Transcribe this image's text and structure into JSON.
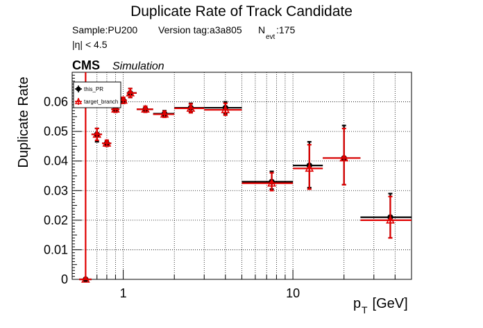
{
  "chart_data": {
    "type": "scatter",
    "title": "Duplicate Rate of Track Candidate",
    "info": {
      "sample": "Sample:PU200",
      "version": "Version tag:a3a805",
      "nevt_prefix": "N",
      "nevt_sub": "evt",
      "nevt_value": ":175",
      "eta_cut": "|η| < 4.5"
    },
    "cms_label": "CMS",
    "cms_extra": "Simulation",
    "xlabel_main": "p",
    "xlabel_sub": "T",
    "xlabel_unit": " [GeV]",
    "ylabel": "Duplicate Rate",
    "x_scale": "log",
    "xlim": [
      0.5,
      50
    ],
    "ylim": [
      0,
      0.07
    ],
    "grid": true,
    "legend_position": "top-left",
    "yticks": [
      0,
      0.01,
      0.02,
      0.03,
      0.04,
      0.05,
      0.06
    ],
    "ytick_labels": [
      "0",
      "0.01",
      "0.02",
      "0.03",
      "0.04",
      "0.05",
      "0.06"
    ],
    "xticks": [
      1,
      10
    ],
    "xtick_labels": [
      "1",
      "10"
    ],
    "series": [
      {
        "name": "this_PR",
        "color": "#000000",
        "marker": "filled-circle",
        "points": [
          {
            "x": 0.6,
            "xlo": 0.55,
            "xhi": 0.65,
            "y": 0.0,
            "ylo": 0.0,
            "yhi": 0.0
          },
          {
            "x": 0.7,
            "xlo": 0.65,
            "xhi": 0.75,
            "y": 0.049,
            "ylo": 0.0465,
            "yhi": 0.051
          },
          {
            "x": 0.8,
            "xlo": 0.75,
            "xhi": 0.85,
            "y": 0.046,
            "ylo": 0.045,
            "yhi": 0.047
          },
          {
            "x": 0.9,
            "xlo": 0.85,
            "xhi": 0.95,
            "y": 0.0575,
            "ylo": 0.0565,
            "yhi": 0.0585
          },
          {
            "x": 1.0,
            "xlo": 0.95,
            "xhi": 1.05,
            "y": 0.0605,
            "ylo": 0.0595,
            "yhi": 0.0615
          },
          {
            "x": 1.1,
            "xlo": 1.05,
            "xhi": 1.2,
            "y": 0.063,
            "ylo": 0.0615,
            "yhi": 0.0645
          },
          {
            "x": 1.35,
            "xlo": 1.2,
            "xhi": 1.5,
            "y": 0.0575,
            "ylo": 0.0565,
            "yhi": 0.0585
          },
          {
            "x": 1.75,
            "xlo": 1.5,
            "xhi": 2.0,
            "y": 0.056,
            "ylo": 0.055,
            "yhi": 0.057
          },
          {
            "x": 2.5,
            "xlo": 2.0,
            "xhi": 3.0,
            "y": 0.058,
            "ylo": 0.0565,
            "yhi": 0.0595
          },
          {
            "x": 4.0,
            "xlo": 3.0,
            "xhi": 5.0,
            "y": 0.058,
            "ylo": 0.056,
            "yhi": 0.06
          },
          {
            "x": 7.5,
            "xlo": 5.0,
            "xhi": 10.0,
            "y": 0.033,
            "ylo": 0.0305,
            "yhi": 0.0365
          },
          {
            "x": 12.5,
            "xlo": 10.0,
            "xhi": 15.0,
            "y": 0.0385,
            "ylo": 0.031,
            "yhi": 0.0465
          },
          {
            "x": 20.0,
            "xlo": 15.0,
            "xhi": 25.0,
            "y": 0.041,
            "ylo": 0.032,
            "yhi": 0.052
          },
          {
            "x": 37.5,
            "xlo": 25.0,
            "xhi": 50.0,
            "y": 0.021,
            "ylo": 0.014,
            "yhi": 0.029
          }
        ]
      },
      {
        "name": "target_branch",
        "color": "#e00000",
        "marker": "open-triangle",
        "points": [
          {
            "x": 0.6,
            "xlo": 0.55,
            "xhi": 0.65,
            "y": 0.0,
            "ylo": 0.0,
            "yhi": 0.07
          },
          {
            "x": 0.7,
            "xlo": 0.65,
            "xhi": 0.75,
            "y": 0.049,
            "ylo": 0.047,
            "yhi": 0.051
          },
          {
            "x": 0.8,
            "xlo": 0.75,
            "xhi": 0.85,
            "y": 0.046,
            "ylo": 0.045,
            "yhi": 0.047
          },
          {
            "x": 0.9,
            "xlo": 0.85,
            "xhi": 0.95,
            "y": 0.0575,
            "ylo": 0.0565,
            "yhi": 0.0585
          },
          {
            "x": 1.0,
            "xlo": 0.95,
            "xhi": 1.05,
            "y": 0.0605,
            "ylo": 0.0595,
            "yhi": 0.0615
          },
          {
            "x": 1.1,
            "xlo": 1.05,
            "xhi": 1.2,
            "y": 0.063,
            "ylo": 0.0615,
            "yhi": 0.0645
          },
          {
            "x": 1.35,
            "xlo": 1.2,
            "xhi": 1.5,
            "y": 0.0575,
            "ylo": 0.0565,
            "yhi": 0.0585
          },
          {
            "x": 1.75,
            "xlo": 1.5,
            "xhi": 2.0,
            "y": 0.0558,
            "ylo": 0.0548,
            "yhi": 0.0568
          },
          {
            "x": 2.5,
            "xlo": 2.0,
            "xhi": 3.0,
            "y": 0.0578,
            "ylo": 0.0563,
            "yhi": 0.0593
          },
          {
            "x": 4.0,
            "xlo": 3.0,
            "xhi": 5.0,
            "y": 0.0573,
            "ylo": 0.0555,
            "yhi": 0.0595
          },
          {
            "x": 7.5,
            "xlo": 5.0,
            "xhi": 10.0,
            "y": 0.0325,
            "ylo": 0.03,
            "yhi": 0.036
          },
          {
            "x": 12.5,
            "xlo": 10.0,
            "xhi": 15.0,
            "y": 0.0375,
            "ylo": 0.0305,
            "yhi": 0.0455
          },
          {
            "x": 20.0,
            "xlo": 15.0,
            "xhi": 25.0,
            "y": 0.041,
            "ylo": 0.032,
            "yhi": 0.051
          },
          {
            "x": 37.5,
            "xlo": 25.0,
            "xhi": 50.0,
            "y": 0.02,
            "ylo": 0.014,
            "yhi": 0.028
          }
        ]
      }
    ]
  }
}
